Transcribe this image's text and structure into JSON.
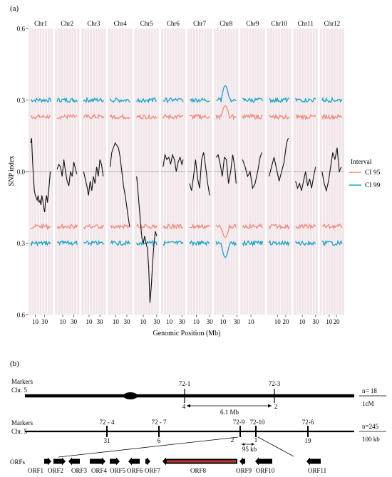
{
  "panel_a": {
    "label": "(a)",
    "chart_data": {
      "type": "line",
      "title": "",
      "xlabel": "Genomic Position (Mb)",
      "ylabel": "SNP index",
      "ylim": [
        -0.6,
        0.6
      ],
      "y_ticks": [
        0.6,
        0.3,
        0.0,
        0.3,
        0.6
      ],
      "y_tick_labels": [
        "0.6",
        "0.3",
        "0.0",
        "0.3",
        "0.6"
      ],
      "grid": true,
      "legend": {
        "title": "Interval",
        "position": "right",
        "entries": [
          "CI 95",
          "CI 99"
        ]
      },
      "colors": {
        "CI 95": "#f08a7e",
        "CI 99": "#1aa3c8",
        "delta": "#111111",
        "panel_bg": "#f1e6e9",
        "grid": "#ffffff"
      },
      "facets": [
        {
          "name": "Chr1",
          "length_mb": 43,
          "ticks": [
            10,
            30
          ],
          "delta_x": [
            0,
            2,
            4,
            6,
            8,
            10,
            12,
            14,
            16,
            18,
            20,
            22,
            24,
            26,
            28,
            30,
            32,
            34,
            36,
            38,
            40,
            42
          ],
          "delta_y": [
            0.12,
            0.14,
            0.05,
            -0.02,
            -0.08,
            -0.1,
            -0.11,
            -0.12,
            -0.1,
            -0.13,
            -0.12,
            -0.14,
            -0.1,
            -0.12,
            -0.15,
            -0.17,
            -0.12,
            -0.1,
            -0.13,
            -0.09,
            -0.05,
            0.0
          ]
        },
        {
          "name": "Chr2",
          "length_mb": 36,
          "ticks": [
            10,
            30
          ],
          "delta_x": [
            0,
            3,
            6,
            9,
            12,
            15,
            18,
            21,
            24,
            27,
            30,
            33,
            35
          ],
          "delta_y": [
            0.01,
            0.03,
            0.02,
            -0.02,
            0.05,
            0.0,
            -0.04,
            -0.06,
            0.0,
            -0.02,
            0.04,
            0.01,
            -0.01
          ]
        },
        {
          "name": "Chr3",
          "length_mb": 37,
          "ticks": [
            10,
            30
          ],
          "delta_x": [
            0,
            3,
            6,
            9,
            12,
            15,
            18,
            21,
            24,
            27,
            30,
            33,
            36
          ],
          "delta_y": [
            0.0,
            -0.03,
            -0.06,
            -0.1,
            -0.04,
            -0.08,
            -0.02,
            -0.05,
            0.02,
            -0.02,
            0.05,
            0.03,
            -0.02
          ]
        },
        {
          "name": "Chr4",
          "length_mb": 36,
          "ticks": [
            10,
            30
          ],
          "delta_x": [
            0,
            3,
            6,
            9,
            12,
            15,
            18,
            21,
            24,
            27,
            30,
            33,
            35
          ],
          "delta_y": [
            0.02,
            0.08,
            0.1,
            0.12,
            0.11,
            0.1,
            0.06,
            0.0,
            -0.06,
            -0.1,
            -0.15,
            -0.2,
            -0.23
          ]
        },
        {
          "name": "Chr5",
          "length_mb": 30,
          "ticks": [
            10,
            30
          ],
          "delta_x": [
            0,
            2,
            4,
            6,
            8,
            10,
            12,
            14,
            16,
            18,
            20,
            22,
            24,
            26,
            28,
            30
          ],
          "delta_y": [
            -0.02,
            -0.08,
            -0.15,
            -0.22,
            -0.28,
            -0.3,
            -0.27,
            -0.3,
            -0.32,
            -0.4,
            -0.55,
            -0.48,
            -0.38,
            -0.3,
            -0.25,
            -0.27
          ]
        },
        {
          "name": "Chr6",
          "length_mb": 32,
          "ticks": [
            10,
            30
          ],
          "delta_x": [
            0,
            3,
            6,
            9,
            12,
            15,
            18,
            21,
            24,
            27,
            30,
            32
          ],
          "delta_y": [
            0.02,
            0.07,
            0.05,
            0.06,
            0.03,
            0.07,
            0.05,
            0.0,
            0.04,
            0.06,
            0.03,
            0.05
          ]
        },
        {
          "name": "Chr7",
          "length_mb": 30,
          "ticks": [
            10,
            30
          ],
          "delta_x": [
            0,
            3,
            6,
            9,
            12,
            15,
            18,
            21,
            24,
            27,
            30
          ],
          "delta_y": [
            -0.05,
            -0.08,
            -0.02,
            0.05,
            -0.03,
            -0.07,
            0.05,
            0.08,
            0.02,
            -0.05,
            -0.1
          ]
        },
        {
          "name": "Chr8",
          "length_mb": 29,
          "ticks": [
            10,
            30
          ],
          "delta_x": [
            0,
            3,
            6,
            9,
            12,
            15,
            18,
            21,
            24,
            27,
            29
          ],
          "delta_y": [
            0.06,
            0.07,
            0.03,
            -0.02,
            0.06,
            0.05,
            -0.05,
            0.0,
            0.07,
            0.02,
            -0.05
          ]
        },
        {
          "name": "Chr9",
          "length_mb": 24,
          "ticks": [
            10
          ],
          "delta_x": [
            0,
            3,
            6,
            9,
            12,
            15,
            18,
            21,
            23
          ],
          "delta_y": [
            0.05,
            0.02,
            -0.02,
            0.0,
            -0.07,
            -0.05,
            0.0,
            0.06,
            0.08
          ]
        },
        {
          "name": "Chr10",
          "length_mb": 24,
          "ticks": [
            10,
            20
          ],
          "delta_x": [
            0,
            3,
            6,
            9,
            12,
            15,
            18,
            21,
            23
          ],
          "delta_y": [
            -0.02,
            0.02,
            0.06,
            0.01,
            -0.04,
            0.0,
            0.04,
            0.12,
            0.14
          ]
        },
        {
          "name": "Chr11",
          "length_mb": 30,
          "ticks": [
            10,
            30
          ],
          "delta_x": [
            0,
            3,
            6,
            9,
            12,
            15,
            18,
            21,
            24,
            27,
            30
          ],
          "delta_y": [
            -0.04,
            -0.07,
            -0.05,
            -0.08,
            -0.04,
            0.0,
            -0.06,
            -0.03,
            -0.07,
            -0.02,
            0.02
          ]
        },
        {
          "name": "Chr12",
          "length_mb": 28,
          "ticks": [
            10,
            20
          ],
          "delta_x": [
            0,
            3,
            6,
            9,
            12,
            15,
            18,
            21,
            24,
            27
          ],
          "delta_y": [
            0.0,
            -0.05,
            -0.08,
            -0.04,
            0.02,
            0.08,
            0.05,
            0.1,
            0.0,
            0.02
          ]
        }
      ],
      "series": [
        {
          "name": "CI 95",
          "values": [
            0.23,
            -0.23
          ]
        },
        {
          "name": "CI 99",
          "values": [
            0.3,
            -0.3
          ]
        }
      ]
    }
  },
  "panel_b": {
    "label": "(b)",
    "track1": {
      "markers_label": "Markers",
      "chr_label": "Chr. 5",
      "markers": [
        {
          "name": "72-1",
          "count": "4"
        },
        {
          "name": "72-3",
          "count": "2"
        }
      ],
      "interval": "6.1 Mb",
      "n": "n= 18",
      "scale": "1cM"
    },
    "track2": {
      "markers_label": "Markers",
      "chr_label": "Chr. 5",
      "markers": [
        {
          "name": "72 - 4",
          "count": "31"
        },
        {
          "name": "72 - 7",
          "count": "6"
        },
        {
          "name": "72-9",
          "count": "2"
        },
        {
          "name": "72-10",
          "count": "1"
        },
        {
          "name": "72-6",
          "count": "19"
        }
      ],
      "interval": "95 kb",
      "n": "n=245",
      "scale": "100 kb"
    },
    "orfs": {
      "label": "ORFs",
      "items": [
        "ORF1",
        "ORF2",
        "ORF3",
        "ORF4",
        "ORF5",
        "ORF6",
        "ORF7",
        "ORF8",
        "ORF9",
        "ORF10",
        "ORF11"
      ],
      "highlight": "ORF8",
      "highlight_color": "#c0392b"
    }
  }
}
